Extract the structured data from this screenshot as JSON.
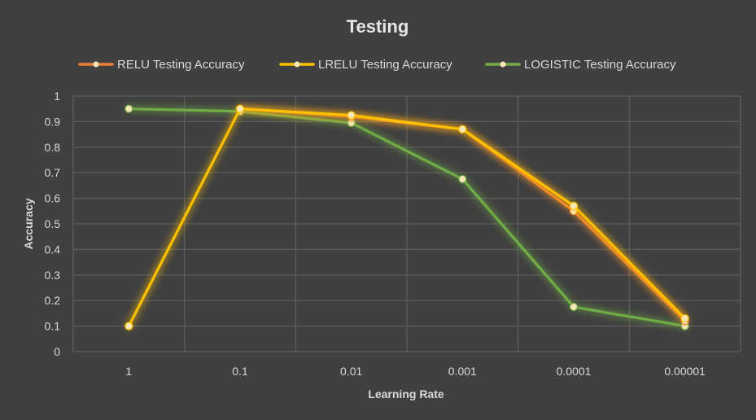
{
  "chart_data": {
    "type": "line",
    "title": "Testing",
    "xlabel": "Learning Rate",
    "ylabel": "Accuracy",
    "categories": [
      "1",
      "0.1",
      "0.01",
      "0.001",
      "0.0001",
      "0.00001"
    ],
    "ylim": [
      0,
      1
    ],
    "yticks": [
      "0",
      "0.1",
      "0.2",
      "0.3",
      "0.4",
      "0.5",
      "0.6",
      "0.7",
      "0.8",
      "0.9",
      "1"
    ],
    "grid": true,
    "legend_position": "top",
    "series": [
      {
        "name": "RELU Testing Accuracy",
        "color": "#ed7d31",
        "values": [
          null,
          0.95,
          0.92,
          0.87,
          0.55,
          0.12
        ]
      },
      {
        "name": "LRELU Testing Accuracy",
        "color": "#ffc000",
        "values": [
          0.1,
          0.95,
          0.925,
          0.87,
          0.57,
          0.13
        ]
      },
      {
        "name": "LOGISTIC Testing Accuracy",
        "color": "#70ad47",
        "values": [
          0.95,
          0.94,
          0.895,
          0.675,
          0.175,
          0.1
        ]
      }
    ]
  }
}
